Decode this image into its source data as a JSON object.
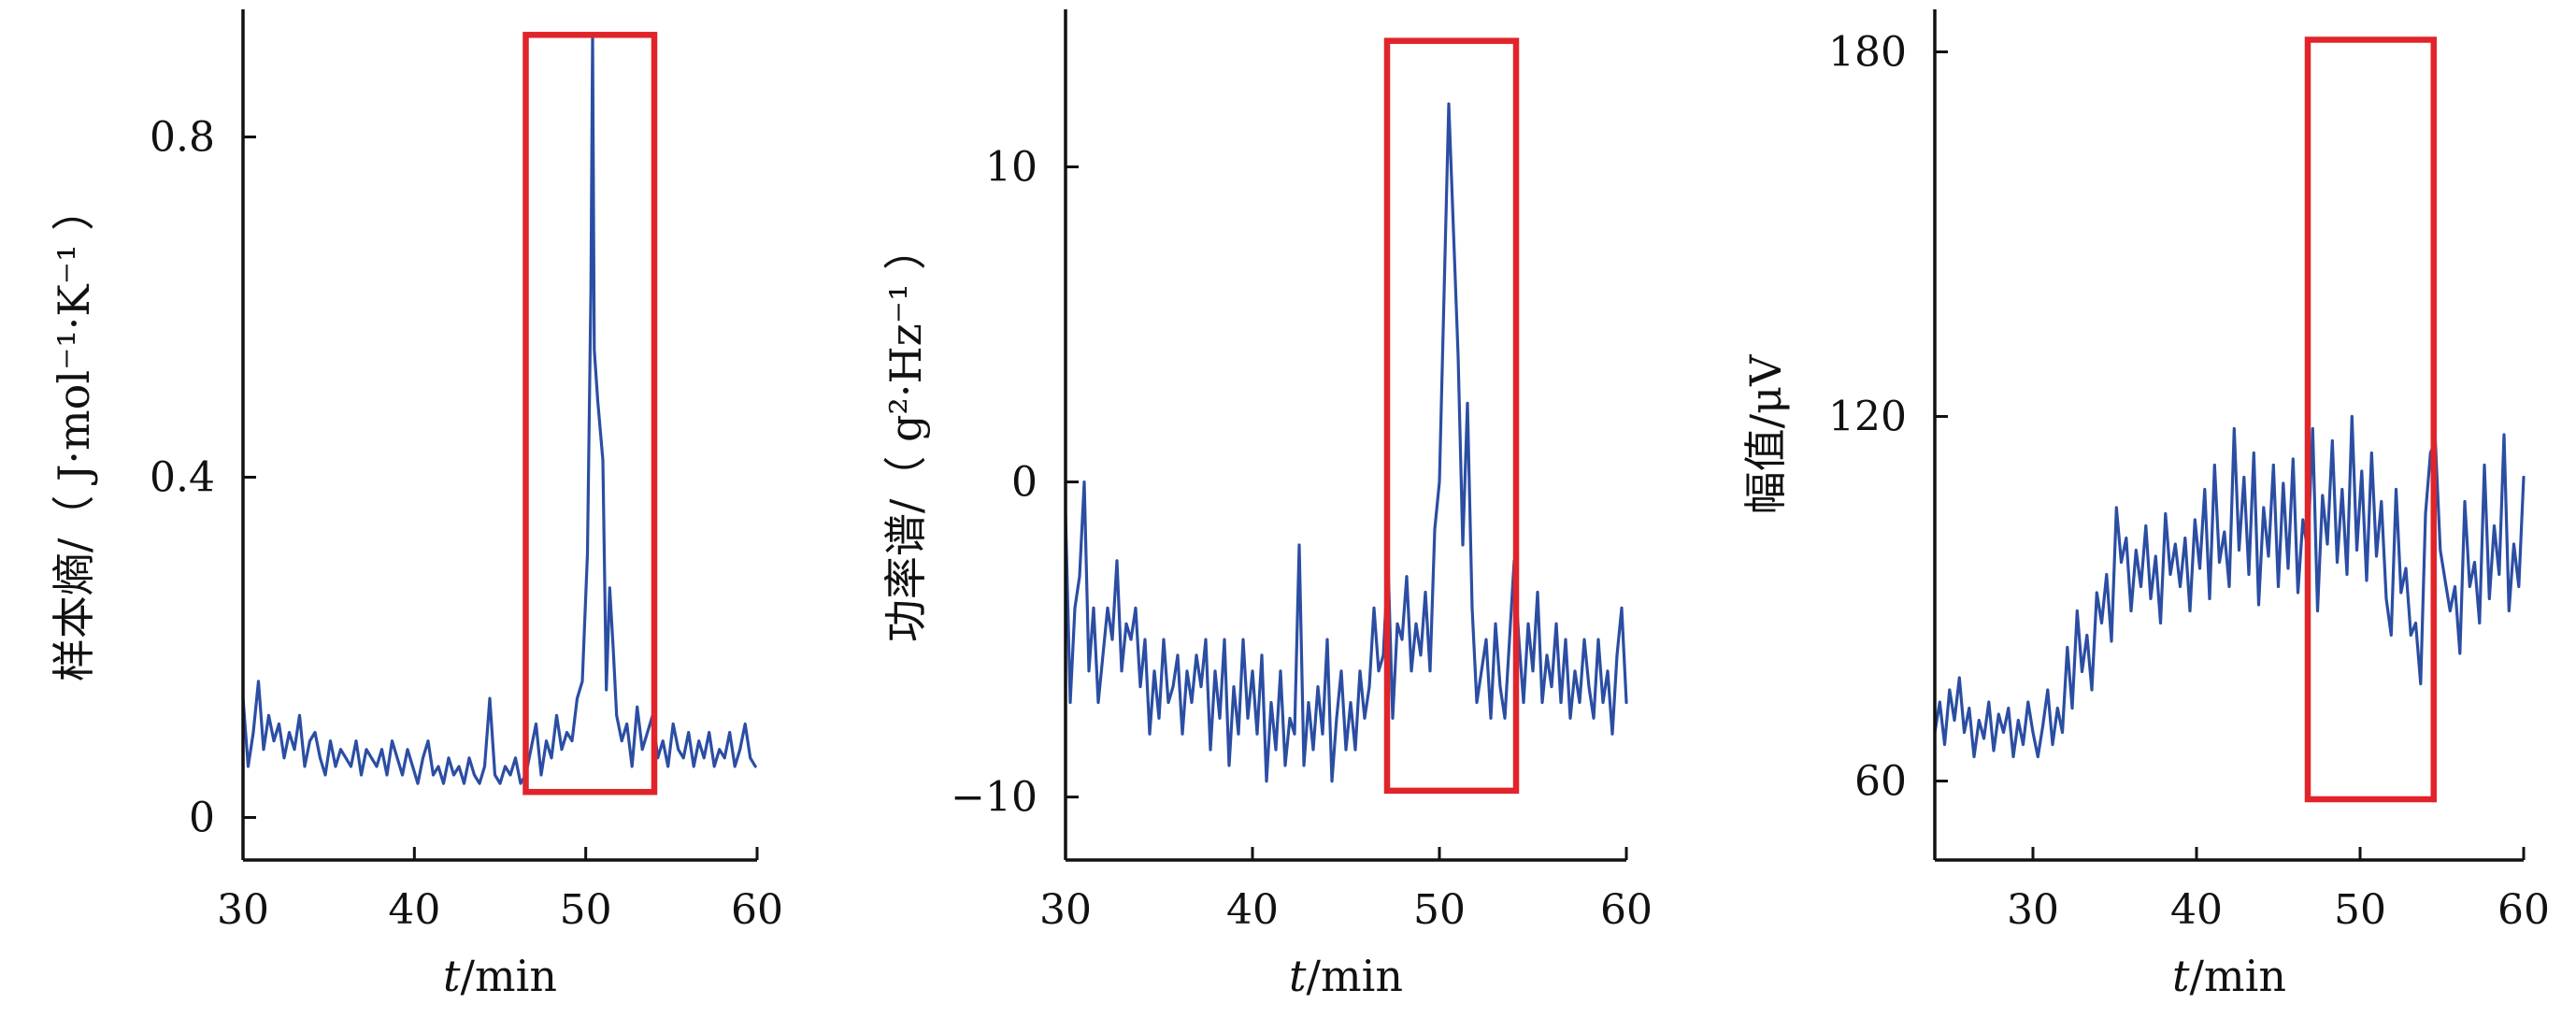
{
  "colors": {
    "series": "#2b4ea3",
    "highlight": "#e0242a",
    "axis": "#111111"
  },
  "chart_data": [
    {
      "type": "line",
      "xlabel_var": "t",
      "xlabel_unit": "/min",
      "ylabel": "样本熵/（ J·mol⁻¹·K⁻¹ ）",
      "xlim": [
        30,
        60
      ],
      "ylim": [
        -0.05,
        0.95
      ],
      "x_ticks": [
        30,
        40,
        50,
        60
      ],
      "y_ticks": [
        0,
        0.4,
        0.8
      ],
      "x_tick_labels": [
        "30",
        "40",
        "50",
        "60"
      ],
      "y_tick_labels": [
        "0",
        "0.4",
        "0.8"
      ],
      "highlight": {
        "x_range": [
          46.5,
          54.0
        ],
        "y_range": [
          0.03,
          0.92
        ]
      },
      "series": [
        {
          "x": [
            30.0,
            30.3,
            30.6,
            30.9,
            31.2,
            31.5,
            31.8,
            32.1,
            32.4,
            32.7,
            33.0,
            33.3,
            33.6,
            33.9,
            34.2,
            34.5,
            34.8,
            35.1,
            35.4,
            35.7,
            36.0,
            36.3,
            36.6,
            36.9,
            37.2,
            37.5,
            37.8,
            38.1,
            38.4,
            38.7,
            39.0,
            39.3,
            39.6,
            39.9,
            40.2,
            40.5,
            40.8,
            41.1,
            41.4,
            41.7,
            42.0,
            42.3,
            42.6,
            42.9,
            43.2,
            43.5,
            43.8,
            44.1,
            44.4,
            44.7,
            45.0,
            45.3,
            45.6,
            45.9,
            46.2,
            46.5,
            46.8,
            47.1,
            47.4,
            47.7,
            48.0,
            48.3,
            48.6,
            48.9,
            49.2,
            49.5,
            49.8,
            50.1,
            50.3,
            50.4,
            50.5,
            50.7,
            51.0,
            51.2,
            51.4,
            51.6,
            51.8,
            52.1,
            52.4,
            52.7,
            53.0,
            53.3,
            53.6,
            53.9,
            54.2,
            54.5,
            54.8,
            55.1,
            55.4,
            55.7,
            56.0,
            56.3,
            56.6,
            56.9,
            57.2,
            57.5,
            57.8,
            58.1,
            58.4,
            58.7,
            59.0,
            59.3,
            59.6,
            59.9
          ],
          "y": [
            0.14,
            0.06,
            0.1,
            0.16,
            0.08,
            0.12,
            0.09,
            0.11,
            0.07,
            0.1,
            0.08,
            0.12,
            0.06,
            0.09,
            0.1,
            0.07,
            0.05,
            0.09,
            0.06,
            0.08,
            0.07,
            0.06,
            0.09,
            0.05,
            0.08,
            0.07,
            0.06,
            0.08,
            0.05,
            0.09,
            0.07,
            0.05,
            0.08,
            0.06,
            0.04,
            0.07,
            0.09,
            0.05,
            0.06,
            0.04,
            0.07,
            0.05,
            0.06,
            0.04,
            0.07,
            0.05,
            0.04,
            0.06,
            0.14,
            0.05,
            0.04,
            0.06,
            0.05,
            0.07,
            0.04,
            0.05,
            0.08,
            0.11,
            0.05,
            0.09,
            0.07,
            0.12,
            0.08,
            0.1,
            0.09,
            0.14,
            0.16,
            0.31,
            0.62,
            0.92,
            0.55,
            0.49,
            0.42,
            0.15,
            0.27,
            0.2,
            0.12,
            0.09,
            0.11,
            0.06,
            0.13,
            0.08,
            0.1,
            0.12,
            0.07,
            0.09,
            0.06,
            0.11,
            0.08,
            0.07,
            0.1,
            0.06,
            0.09,
            0.07,
            0.1,
            0.06,
            0.08,
            0.07,
            0.1,
            0.06,
            0.08,
            0.11,
            0.07,
            0.06
          ]
        }
      ]
    },
    {
      "type": "line",
      "xlabel_var": "t",
      "xlabel_unit": "/min",
      "ylabel": "功率谱/（ g²·Hz⁻¹ ）",
      "xlim": [
        30,
        60
      ],
      "ylim": [
        -12,
        15
      ],
      "x_ticks": [
        30,
        40,
        50,
        60
      ],
      "y_ticks": [
        -10,
        0,
        10
      ],
      "x_tick_labels": [
        "30",
        "40",
        "50",
        "60"
      ],
      "y_tick_labels": [
        "−10",
        "0",
        "10"
      ],
      "highlight": {
        "x_range": [
          47.2,
          54.1
        ],
        "y_range": [
          -9.8,
          14.0
        ]
      },
      "series": [
        {
          "x": [
            30.0,
            30.25,
            30.5,
            30.75,
            31.0,
            31.25,
            31.5,
            31.75,
            32.0,
            32.25,
            32.5,
            32.75,
            33.0,
            33.25,
            33.5,
            33.75,
            34.0,
            34.25,
            34.5,
            34.75,
            35.0,
            35.25,
            35.5,
            35.75,
            36.0,
            36.25,
            36.5,
            36.75,
            37.0,
            37.25,
            37.5,
            37.75,
            38.0,
            38.25,
            38.5,
            38.75,
            39.0,
            39.25,
            39.5,
            39.75,
            40.0,
            40.25,
            40.5,
            40.75,
            41.0,
            41.25,
            41.5,
            41.75,
            42.0,
            42.25,
            42.5,
            42.75,
            43.0,
            43.25,
            43.5,
            43.75,
            44.0,
            44.25,
            44.5,
            44.75,
            45.0,
            45.25,
            45.5,
            45.75,
            46.0,
            46.25,
            46.5,
            46.75,
            47.0,
            47.25,
            47.5,
            47.75,
            48.0,
            48.25,
            48.5,
            48.75,
            49.0,
            49.25,
            49.5,
            49.75,
            50.0,
            50.25,
            50.5,
            50.75,
            51.0,
            51.25,
            51.5,
            51.75,
            52.0,
            52.25,
            52.5,
            52.75,
            53.0,
            53.25,
            53.5,
            53.75,
            54.0,
            54.25,
            54.5,
            54.75,
            55.0,
            55.25,
            55.5,
            55.75,
            56.0,
            56.25,
            56.5,
            56.75,
            57.0,
            57.25,
            57.5,
            57.75,
            58.0,
            58.25,
            58.5,
            58.75,
            59.0,
            59.25,
            59.5,
            59.75,
            60.0
          ],
          "y": [
            -1.0,
            -7.0,
            -4.0,
            -3.0,
            0.0,
            -6.0,
            -4.0,
            -7.0,
            -5.5,
            -4.0,
            -5.0,
            -2.5,
            -6.0,
            -4.5,
            -5.0,
            -4.0,
            -6.5,
            -5.0,
            -8.0,
            -6.0,
            -7.5,
            -5.0,
            -7.0,
            -6.5,
            -5.5,
            -8.0,
            -6.0,
            -7.0,
            -5.5,
            -6.5,
            -5.0,
            -8.5,
            -6.0,
            -7.5,
            -5.0,
            -9.0,
            -6.5,
            -8.0,
            -5.0,
            -7.5,
            -6.0,
            -8.0,
            -5.5,
            -9.5,
            -7.0,
            -8.5,
            -6.0,
            -9.0,
            -7.5,
            -8.0,
            -2.0,
            -9.0,
            -7.0,
            -8.5,
            -6.5,
            -8.0,
            -5.0,
            -9.5,
            -7.5,
            -6.0,
            -8.5,
            -7.0,
            -8.5,
            -6.0,
            -7.5,
            -6.5,
            -4.0,
            -6.0,
            -5.5,
            -2.5,
            -7.5,
            -4.5,
            -5.0,
            -3.0,
            -6.0,
            -4.5,
            -5.5,
            -3.5,
            -6.0,
            -1.5,
            0.0,
            6.0,
            12.0,
            8.0,
            4.0,
            -2.0,
            2.5,
            -4.0,
            -7.0,
            -6.0,
            -5.0,
            -7.5,
            -4.5,
            -6.5,
            -7.5,
            -5.0,
            -2.5,
            -5.0,
            -7.0,
            -4.5,
            -6.0,
            -3.5,
            -7.0,
            -5.5,
            -6.5,
            -4.5,
            -7.0,
            -5.0,
            -7.5,
            -6.0,
            -7.0,
            -5.0,
            -6.5,
            -7.5,
            -5.0,
            -7.0,
            -6.0,
            -8.0,
            -5.5,
            -4.0,
            -7.0
          ]
        }
      ]
    },
    {
      "type": "line",
      "xlabel_var": "t",
      "xlabel_unit": "/min",
      "ylabel": "幅值/μV",
      "xlim": [
        24,
        60
      ],
      "ylim": [
        47,
        187
      ],
      "x_ticks": [
        30,
        40,
        50,
        60
      ],
      "y_ticks": [
        60,
        120,
        180
      ],
      "x_tick_labels": [
        "30",
        "40",
        "50",
        "60"
      ],
      "y_tick_labels": [
        "60",
        "120",
        "180"
      ],
      "highlight": {
        "x_range": [
          46.8,
          54.5
        ],
        "y_range": [
          57,
          182
        ]
      },
      "series": [
        {
          "x": [
            24.0,
            24.3,
            24.6,
            24.9,
            25.2,
            25.5,
            25.8,
            26.1,
            26.4,
            26.7,
            27.0,
            27.3,
            27.6,
            27.9,
            28.2,
            28.5,
            28.8,
            29.1,
            29.4,
            29.7,
            30.0,
            30.3,
            30.6,
            30.9,
            31.2,
            31.5,
            31.8,
            32.1,
            32.4,
            32.7,
            33.0,
            33.3,
            33.6,
            33.9,
            34.2,
            34.5,
            34.8,
            35.1,
            35.4,
            35.7,
            36.0,
            36.3,
            36.6,
            36.9,
            37.2,
            37.5,
            37.8,
            38.1,
            38.4,
            38.7,
            39.0,
            39.3,
            39.6,
            39.9,
            40.2,
            40.5,
            40.8,
            41.1,
            41.4,
            41.7,
            42.0,
            42.3,
            42.6,
            42.9,
            43.2,
            43.5,
            43.8,
            44.1,
            44.4,
            44.7,
            45.0,
            45.3,
            45.6,
            45.9,
            46.2,
            46.5,
            46.8,
            47.1,
            47.4,
            47.7,
            48.0,
            48.3,
            48.6,
            48.9,
            49.2,
            49.5,
            49.8,
            50.1,
            50.4,
            50.7,
            51.0,
            51.3,
            51.6,
            51.9,
            52.2,
            52.5,
            52.8,
            53.1,
            53.4,
            53.7,
            54.0,
            54.3,
            54.6,
            54.9,
            55.2,
            55.5,
            55.8,
            56.1,
            56.4,
            56.7,
            57.0,
            57.3,
            57.6,
            57.9,
            58.2,
            58.5,
            58.8,
            59.1,
            59.4,
            59.7,
            60.0
          ],
          "y": [
            68,
            73,
            66,
            75,
            70,
            77,
            68,
            72,
            64,
            70,
            67,
            73,
            65,
            71,
            68,
            72,
            64,
            70,
            66,
            73,
            68,
            64,
            69,
            75,
            66,
            72,
            68,
            82,
            72,
            88,
            78,
            84,
            75,
            91,
            86,
            94,
            83,
            105,
            96,
            100,
            88,
            98,
            92,
            102,
            90,
            97,
            86,
            104,
            94,
            99,
            92,
            100,
            88,
            103,
            95,
            108,
            90,
            112,
            96,
            101,
            92,
            118,
            98,
            110,
            94,
            114,
            89,
            105,
            97,
            112,
            92,
            109,
            95,
            113,
            91,
            103,
            98,
            118,
            88,
            107,
            99,
            116,
            96,
            108,
            94,
            120,
            98,
            111,
            93,
            114,
            97,
            106,
            90,
            84,
            108,
            91,
            95,
            84,
            86,
            76,
            104,
            114,
            116,
            98,
            93,
            88,
            92,
            81,
            106,
            92,
            96,
            86,
            112,
            90,
            102,
            94,
            117,
            88,
            99,
            92,
            110
          ]
        }
      ]
    }
  ]
}
